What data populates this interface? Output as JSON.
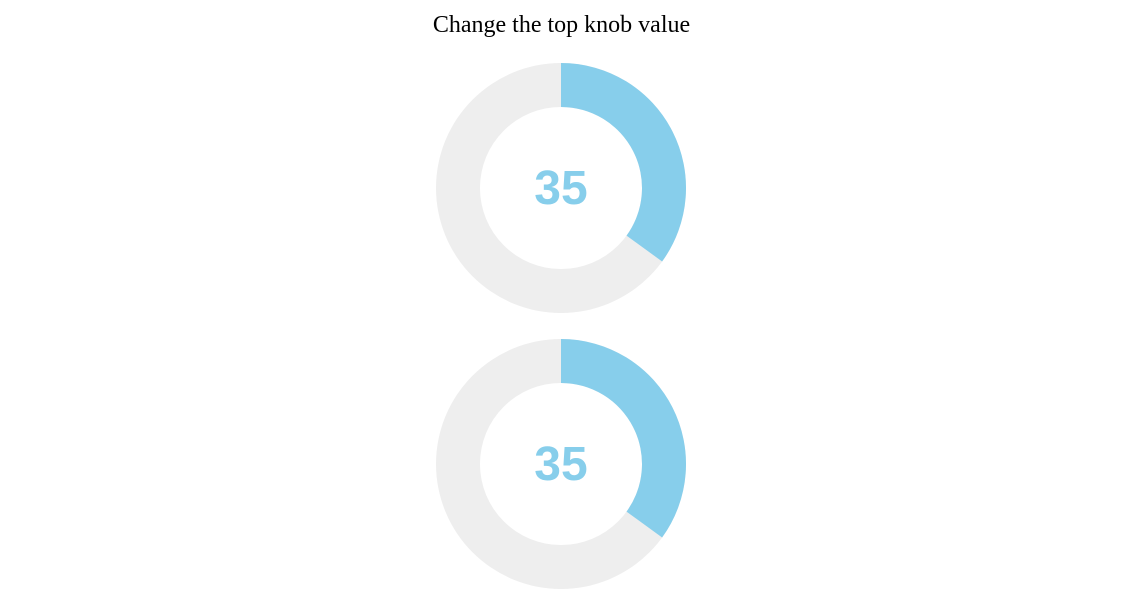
{
  "title": "Change the top knob value",
  "colors": {
    "foreground": "#87CEEB",
    "background": "#EEEEEE"
  },
  "knobs": [
    {
      "id": "top",
      "value": "35",
      "min": 0,
      "max": 100
    },
    {
      "id": "bottom",
      "value": "35",
      "min": 0,
      "max": 100
    }
  ]
}
